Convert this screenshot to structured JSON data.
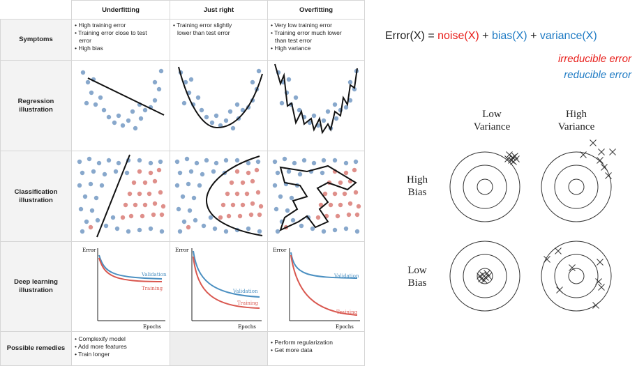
{
  "table": {
    "columns": [
      "Underfitting",
      "Just right",
      "Overfitting"
    ],
    "rows": [
      {
        "label": "Symptoms"
      },
      {
        "label": "Regression illustration"
      },
      {
        "label": "Classification illustration"
      },
      {
        "label": "Deep learning illustration"
      },
      {
        "label": "Possible remedies"
      }
    ],
    "symptoms": [
      [
        "• High training error",
        "• Training error close to test",
        "error",
        "• High bias"
      ],
      [
        "• Training error slightly",
        "lower than test error"
      ],
      [
        "• Very low training error",
        "• Training error much lower",
        "than test error",
        "• High variance"
      ]
    ],
    "remedies": [
      [
        "• Complexify model",
        "• Add more features",
        "• Train longer"
      ],
      [],
      [
        "• Perform regularization",
        "• Get more data"
      ]
    ],
    "dl": {
      "y_axis": "Error",
      "x_axis": "Epochs",
      "validation": "Validation",
      "training": "Training",
      "validation_color": "#4a8fc1",
      "training_color": "#d9574f"
    },
    "point_colors": {
      "blue": "#88a8cc",
      "red": "#df8f8a"
    }
  },
  "equation": {
    "prefix": "Error(X) = ",
    "noise": "noise(X)",
    "plus1": " + ",
    "bias": "bias(X)",
    "plus2": " + ",
    "variance": "variance(X)",
    "noise_color": "#e8201c",
    "bias_color": "#1f7bc4"
  },
  "notes": {
    "irreducible": "irreducible error",
    "reducible": "reducible error"
  },
  "targets": {
    "col_low_variance": "Low\nVariance",
    "col_high_variance": "High\nVariance",
    "row_high_bias": "High\nBias",
    "row_low_bias": "Low\nBias"
  }
}
